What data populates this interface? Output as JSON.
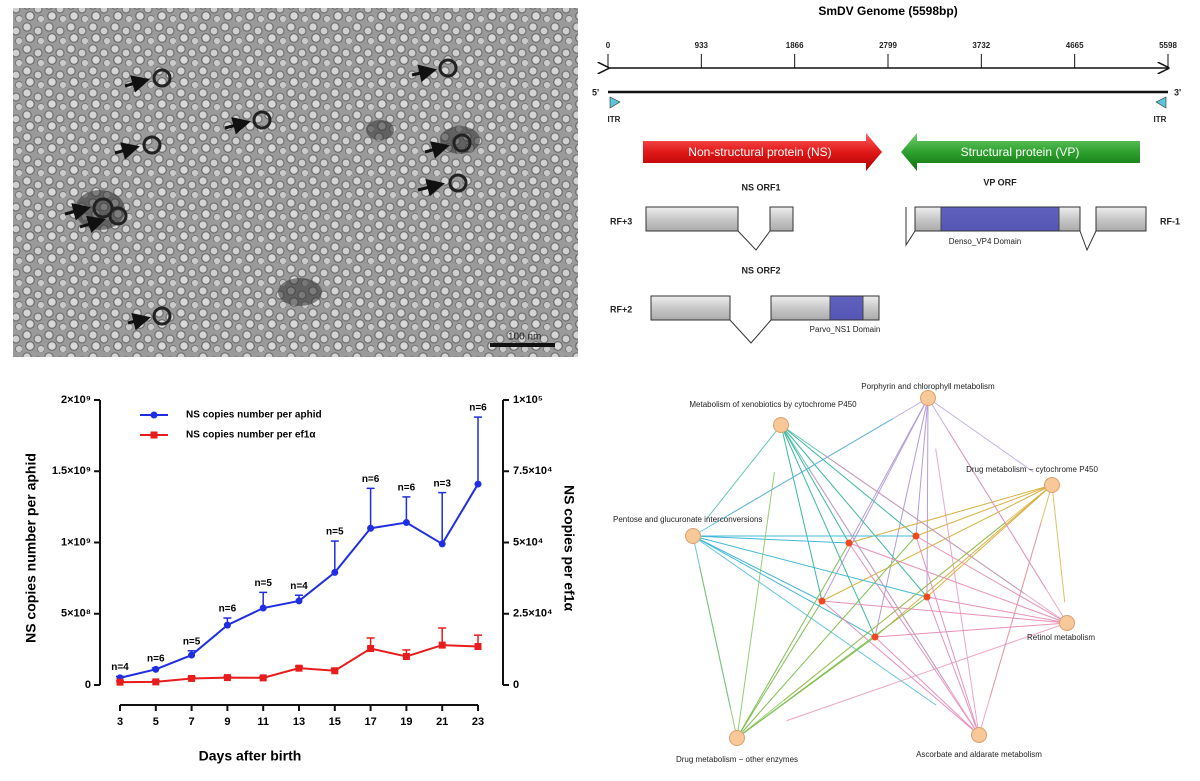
{
  "micrograph": {
    "scale_bar": "100 nm"
  },
  "genome": {
    "title": "SmDV Genome (5598bp)",
    "ruler_ticks": [
      0,
      933,
      1866,
      2799,
      3732,
      4665,
      5598
    ],
    "end5": "5'",
    "end3": "3'",
    "itr": [
      "ITR",
      "ITR"
    ],
    "ns_arrow": "Non-structural protein (NS)",
    "vp_arrow": "Structural protein (VP)",
    "orfs": [
      "NS ORF1",
      "VP ORF",
      "NS ORF2"
    ],
    "frames": [
      "RF+3",
      "RF-1",
      "RF+2"
    ],
    "domains": [
      "Denso_VP4 Domain",
      "Parvo_NS1 Domain"
    ]
  },
  "chart_data": {
    "type": "line",
    "x_label": "Days after birth",
    "y_label": "NS copies number per aphid",
    "y2_label": "NS copies per ef1α",
    "x": [
      3,
      5,
      7,
      9,
      11,
      13,
      15,
      17,
      19,
      21,
      23
    ],
    "xlim": [
      3,
      23
    ],
    "xticks": [
      3,
      5,
      7,
      9,
      11,
      13,
      15,
      17,
      19,
      21,
      23
    ],
    "ylim": [
      0,
      2000000000
    ],
    "yticks": [
      0,
      {
        "value": 500000000,
        "label": "5×10⁸"
      },
      {
        "value": 1000000000,
        "label": "1×10⁹"
      },
      {
        "value": 1500000000,
        "label": "1.5×10⁹"
      },
      {
        "value": 2000000000,
        "label": "2×10⁹"
      }
    ],
    "y2lim": [
      0,
      100000
    ],
    "y2ticks": [
      0,
      {
        "value": 25000,
        "label": "2.5×10⁴"
      },
      {
        "value": 50000,
        "label": "5×10⁴"
      },
      {
        "value": 75000,
        "label": "7.5×10⁴"
      },
      {
        "value": 100000,
        "label": "1×10⁵"
      }
    ],
    "series": [
      {
        "name": "NS copies number per aphid",
        "color": "#1f2ee0",
        "values": [
          50000000,
          110000000,
          210000000,
          420000000,
          540000000,
          590000000,
          790000000,
          1100000000,
          1140000000,
          990000000,
          1410000000
        ],
        "errors": [
          10000000,
          10000000,
          30000000,
          50000000,
          110000000,
          40000000,
          220000000,
          280000000,
          180000000,
          360000000,
          470000000
        ]
      },
      {
        "name": "NS copies number per ef1α",
        "color": "#e81c1c",
        "axis": "y2",
        "values": [
          1000,
          1100,
          2300,
          2600,
          2500,
          5900,
          5000,
          12800,
          10000,
          14000,
          13500
        ],
        "errors": [
          400,
          400,
          500,
          400,
          400,
          600,
          700,
          3700,
          2300,
          6000,
          4000
        ]
      }
    ],
    "annotations": [
      "n=4",
      "n=6",
      "n=5",
      "n=6",
      "n=5",
      "n=4",
      "n=5",
      "n=6",
      "n=6",
      "n=3",
      "n=6"
    ]
  },
  "network": {
    "nodes": [
      "Porphyrin and chlorophyll metabolism",
      "Metabolism of xenobiotics by cytochrome P450",
      "Drug metabolism − cytochrome P450",
      "Pentose and glucuronate interconversions",
      "Retinol metabolism",
      "Ascorbate and aldarate metabolism",
      "Drug metabolism − other enzymes"
    ]
  }
}
